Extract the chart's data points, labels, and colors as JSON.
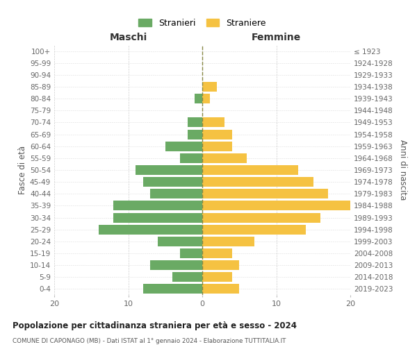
{
  "age_groups": [
    "100+",
    "95-99",
    "90-94",
    "85-89",
    "80-84",
    "75-79",
    "70-74",
    "65-69",
    "60-64",
    "55-59",
    "50-54",
    "45-49",
    "40-44",
    "35-39",
    "30-34",
    "25-29",
    "20-24",
    "15-19",
    "10-14",
    "5-9",
    "0-4"
  ],
  "birth_years": [
    "≤ 1923",
    "1924-1928",
    "1929-1933",
    "1934-1938",
    "1939-1943",
    "1944-1948",
    "1949-1953",
    "1954-1958",
    "1959-1963",
    "1964-1968",
    "1969-1973",
    "1974-1978",
    "1979-1983",
    "1984-1988",
    "1989-1993",
    "1994-1998",
    "1999-2003",
    "2004-2008",
    "2009-2013",
    "2014-2018",
    "2019-2023"
  ],
  "maschi": [
    0,
    0,
    0,
    0,
    1,
    0,
    2,
    2,
    5,
    3,
    9,
    8,
    7,
    12,
    12,
    14,
    6,
    3,
    7,
    4,
    8
  ],
  "femmine": [
    0,
    0,
    0,
    2,
    1,
    0,
    3,
    4,
    4,
    6,
    13,
    15,
    17,
    20,
    16,
    14,
    7,
    4,
    5,
    4,
    5
  ],
  "color_maschi": "#6aaa64",
  "color_femmine": "#f5c242",
  "title": "Popolazione per cittadinanza straniera per età e sesso - 2024",
  "subtitle": "COMUNE DI CAPONAGO (MB) - Dati ISTAT al 1° gennaio 2024 - Elaborazione TUTTITALIA.IT",
  "xlabel_left": "Maschi",
  "xlabel_right": "Femmine",
  "ylabel_left": "Fasce di età",
  "ylabel_right": "Anni di nascita",
  "legend_maschi": "Stranieri",
  "legend_femmine": "Straniere",
  "xlim": 20,
  "bar_height": 0.82
}
